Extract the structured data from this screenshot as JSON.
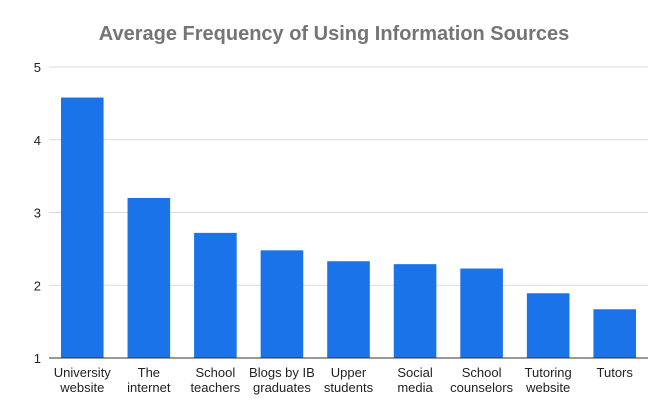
{
  "chart_data": {
    "type": "bar",
    "title": "Average Frequency of Using Information Sources",
    "xlabel": "",
    "ylabel": "",
    "categories": [
      [
        "University",
        "website"
      ],
      [
        "The",
        "internet"
      ],
      [
        "School",
        "teachers"
      ],
      [
        "Blogs by IB",
        "graduates"
      ],
      [
        "Upper",
        "students"
      ],
      [
        "Social",
        "media"
      ],
      [
        "School",
        "counselors"
      ],
      [
        "Tutoring",
        "website"
      ],
      [
        "Tutors"
      ]
    ],
    "values": [
      4.58,
      3.2,
      2.72,
      2.48,
      2.33,
      2.29,
      2.23,
      1.89,
      1.67
    ],
    "ylim": [
      1,
      5
    ],
    "yticks": [
      1,
      2,
      3,
      4,
      5
    ],
    "grid": true,
    "legend": "none",
    "bar_color": "#1a73e8"
  }
}
